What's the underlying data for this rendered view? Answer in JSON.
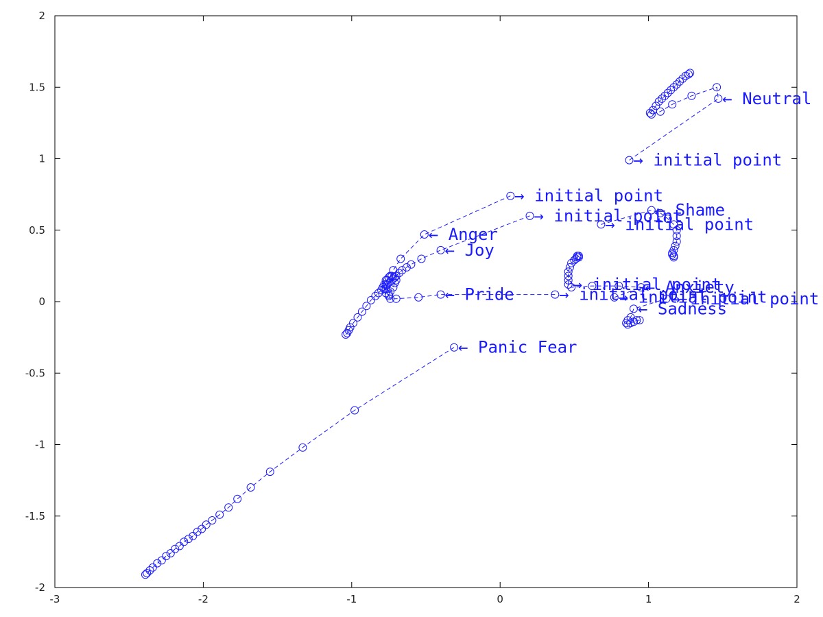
{
  "chart_data": {
    "type": "scatter",
    "xlim": [
      -3,
      2
    ],
    "ylim": [
      -2,
      2
    ],
    "x_ticks": [
      -3,
      -2,
      -1,
      0,
      1,
      2
    ],
    "y_ticks": [
      -2,
      -1.5,
      -1,
      -0.5,
      0,
      0.5,
      1,
      1.5,
      2
    ],
    "x_tick_labels": [
      "-3",
      "-2",
      "-1",
      "0",
      "1",
      "2"
    ],
    "y_tick_labels": [
      "-2",
      "-1.5",
      "-1",
      "-0.5",
      "0",
      "0.5",
      "1",
      "1.5",
      "2"
    ],
    "grid": false,
    "color": "#1a1aff",
    "marker": "open-circle",
    "line_style": "dashed",
    "series": [
      {
        "points": [
          [
            0.87,
            0.99
          ],
          [
            1.47,
            1.42
          ],
          [
            1.46,
            1.5
          ],
          [
            1.29,
            1.44
          ],
          [
            1.16,
            1.38
          ],
          [
            1.08,
            1.33
          ],
          [
            1.02,
            1.31
          ],
          [
            1.01,
            1.32
          ],
          [
            1.03,
            1.34
          ],
          [
            1.05,
            1.37
          ],
          [
            1.07,
            1.4
          ],
          [
            1.09,
            1.42
          ],
          [
            1.11,
            1.44
          ],
          [
            1.13,
            1.46
          ],
          [
            1.15,
            1.48
          ],
          [
            1.17,
            1.5
          ],
          [
            1.19,
            1.52
          ],
          [
            1.21,
            1.54
          ],
          [
            1.23,
            1.56
          ],
          [
            1.25,
            1.58
          ],
          [
            1.27,
            1.59
          ],
          [
            1.28,
            1.6
          ]
        ],
        "labels": [
          {
            "text": "→ initial point",
            "point": 0,
            "dir": "right"
          },
          {
            "text": "← Neutral",
            "point": 1,
            "dir": "right"
          }
        ]
      },
      {
        "points": [
          [
            0.07,
            0.74
          ],
          [
            -0.51,
            0.47
          ],
          [
            -0.67,
            0.3
          ],
          [
            -0.72,
            0.22
          ],
          [
            -0.74,
            0.18
          ],
          [
            -0.76,
            0.15
          ],
          [
            -0.77,
            0.12
          ],
          [
            -0.79,
            0.1
          ],
          [
            -0.8,
            0.08
          ],
          [
            -0.82,
            0.06
          ],
          [
            -0.84,
            0.04
          ],
          [
            -0.87,
            0.01
          ],
          [
            -0.9,
            -0.03
          ],
          [
            -0.93,
            -0.07
          ],
          [
            -0.96,
            -0.11
          ],
          [
            -0.99,
            -0.15
          ],
          [
            -1.01,
            -0.18
          ],
          [
            -1.02,
            -0.2
          ],
          [
            -1.03,
            -0.22
          ],
          [
            -1.04,
            -0.23
          ]
        ],
        "labels": [
          {
            "text": "→ initial point",
            "point": 0,
            "dir": "right"
          },
          {
            "text": "← Anger",
            "point": 1,
            "dir": "right"
          }
        ]
      },
      {
        "points": [
          [
            0.2,
            0.6
          ],
          [
            -0.4,
            0.36
          ],
          [
            -0.53,
            0.3
          ],
          [
            -0.6,
            0.26
          ],
          [
            -0.63,
            0.24
          ],
          [
            -0.66,
            0.22
          ],
          [
            -0.68,
            0.2
          ],
          [
            -0.7,
            0.18
          ],
          [
            -0.72,
            0.16
          ],
          [
            -0.74,
            0.14
          ],
          [
            -0.76,
            0.12
          ],
          [
            -0.78,
            0.09
          ],
          [
            -0.77,
            0.06
          ],
          [
            -0.75,
            0.05
          ]
        ],
        "labels": [
          {
            "text": "→ initial point",
            "point": 0,
            "dir": "right"
          },
          {
            "text": "← Joy",
            "point": 1,
            "dir": "right"
          }
        ]
      },
      {
        "points": [
          [
            0.37,
            0.05
          ],
          [
            -0.4,
            0.05
          ],
          [
            -0.55,
            0.03
          ],
          [
            -0.7,
            0.02
          ],
          [
            -0.74,
            0.02
          ],
          [
            -0.75,
            0.04
          ],
          [
            -0.74,
            0.07
          ],
          [
            -0.72,
            0.1
          ],
          [
            -0.71,
            0.13
          ],
          [
            -0.7,
            0.15
          ],
          [
            -0.71,
            0.17
          ],
          [
            -0.73,
            0.18
          ],
          [
            -0.75,
            0.17
          ],
          [
            -0.77,
            0.15
          ],
          [
            -0.78,
            0.12
          ],
          [
            -0.77,
            0.09
          ]
        ],
        "labels": [
          {
            "text": "→ initial point",
            "point": 0,
            "dir": "right"
          },
          {
            "text": "← Pride",
            "point": 1,
            "dir": "right"
          }
        ]
      },
      {
        "points": [
          [
            0.68,
            0.54
          ],
          [
            1.02,
            0.64
          ],
          [
            1.08,
            0.62
          ],
          [
            1.13,
            0.58
          ],
          [
            1.17,
            0.54
          ],
          [
            1.19,
            0.5
          ],
          [
            1.19,
            0.46
          ],
          [
            1.19,
            0.42
          ],
          [
            1.18,
            0.39
          ],
          [
            1.17,
            0.36
          ],
          [
            1.16,
            0.34
          ],
          [
            1.16,
            0.33
          ],
          [
            1.17,
            0.32
          ],
          [
            1.17,
            0.31
          ]
        ],
        "labels": [
          {
            "text": "→ initial point",
            "point": 0,
            "dir": "right"
          },
          {
            "text": "← Shame",
            "point": 1,
            "dir": "right"
          }
        ]
      },
      {
        "points": [
          [
            0.46,
            0.12
          ],
          [
            0.46,
            0.15
          ],
          [
            0.46,
            0.18
          ],
          [
            0.46,
            0.21
          ],
          [
            0.47,
            0.24
          ],
          [
            0.48,
            0.27
          ],
          [
            0.5,
            0.29
          ],
          [
            0.51,
            0.3
          ],
          [
            0.52,
            0.31
          ],
          [
            0.53,
            0.32
          ],
          [
            0.53,
            0.31
          ],
          [
            0.52,
            0.32
          ]
        ],
        "labels": [
          {
            "text": "→ initial point",
            "point": 0,
            "dir": "right"
          }
        ]
      },
      {
        "points": [
          [
            0.77,
            0.03
          ],
          [
            0.95,
            0.1
          ],
          [
            0.8,
            0.11
          ],
          [
            0.62,
            0.11
          ],
          [
            0.48,
            0.1
          ]
        ],
        "labels": [
          {
            "text": "→ initial point",
            "point": 0,
            "dir": "right"
          },
          {
            "text": "← Anxiety",
            "point": 1,
            "dir": "right"
          }
        ]
      },
      {
        "points": [
          [
            1.12,
            0.02
          ],
          [
            0.9,
            -0.05
          ],
          [
            0.88,
            -0.11
          ],
          [
            0.86,
            -0.13
          ],
          [
            0.85,
            -0.15
          ],
          [
            0.86,
            -0.16
          ],
          [
            0.88,
            -0.15
          ],
          [
            0.9,
            -0.14
          ],
          [
            0.92,
            -0.13
          ],
          [
            0.94,
            -0.13
          ]
        ],
        "labels": [
          {
            "text": "→ initial point",
            "point": 0,
            "dir": "right"
          },
          {
            "text": "← Sadness",
            "point": 1,
            "dir": "right"
          }
        ]
      },
      {
        "points": [
          [
            -0.31,
            -0.32
          ],
          [
            -0.98,
            -0.76
          ],
          [
            -1.33,
            -1.02
          ],
          [
            -1.55,
            -1.19
          ],
          [
            -1.68,
            -1.3
          ],
          [
            -1.77,
            -1.38
          ],
          [
            -1.83,
            -1.44
          ],
          [
            -1.89,
            -1.49
          ],
          [
            -1.94,
            -1.53
          ],
          [
            -1.98,
            -1.56
          ],
          [
            -2.01,
            -1.59
          ],
          [
            -2.04,
            -1.61
          ],
          [
            -2.07,
            -1.64
          ],
          [
            -2.1,
            -1.66
          ],
          [
            -2.13,
            -1.68
          ],
          [
            -2.16,
            -1.71
          ],
          [
            -2.19,
            -1.73
          ],
          [
            -2.22,
            -1.76
          ],
          [
            -2.25,
            -1.78
          ],
          [
            -2.28,
            -1.81
          ],
          [
            -2.31,
            -1.83
          ],
          [
            -2.34,
            -1.86
          ],
          [
            -2.36,
            -1.88
          ],
          [
            -2.38,
            -1.9
          ],
          [
            -2.39,
            -1.91
          ]
        ],
        "labels": [
          {
            "text": "← Panic Fear",
            "point": 0,
            "dir": "right"
          }
        ]
      }
    ]
  }
}
